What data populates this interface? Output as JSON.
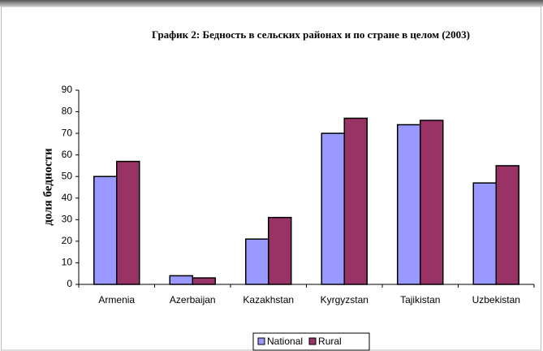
{
  "chart_data": {
    "type": "bar",
    "title": "График 2: Бедность в сельских районах и по стране в целом (2003)",
    "y_label": "доля бедности",
    "categories": [
      "Armenia",
      "Azerbaijan",
      "Kazakhstan",
      "Kyrgyzstan",
      "Tajikistan",
      "Uzbekistan"
    ],
    "series": [
      {
        "name": "National",
        "color": "#9999ff",
        "values": [
          50,
          4,
          21,
          70,
          74,
          47
        ]
      },
      {
        "name": "Rural",
        "color": "#993366",
        "values": [
          57,
          3,
          31,
          77,
          76,
          55
        ]
      }
    ],
    "ylim": [
      0,
      90
    ],
    "yticks": [
      0,
      10,
      20,
      30,
      40,
      50,
      60,
      70,
      80,
      90
    ],
    "grid": false,
    "legend": "bottom"
  }
}
